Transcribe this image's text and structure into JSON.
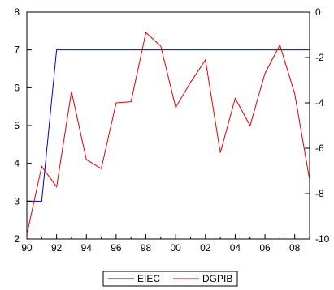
{
  "chart_data": {
    "type": "line",
    "title": "",
    "xlabel": "",
    "ylabel": "",
    "x": [
      1990,
      1991,
      1992,
      1993,
      1994,
      1995,
      1996,
      1997,
      1998,
      1999,
      2000,
      2001,
      2002,
      2003,
      2004,
      2005,
      2006,
      2007,
      2008,
      2009
    ],
    "x_tick_values": [
      1990,
      1992,
      1994,
      1996,
      1998,
      2000,
      2002,
      2004,
      2006,
      2008
    ],
    "x_tick_labels": [
      "90",
      "92",
      "94",
      "96",
      "98",
      "00",
      "02",
      "04",
      "06",
      "08"
    ],
    "xlim": [
      1990,
      2009
    ],
    "ylim_left": [
      2,
      8
    ],
    "y_ticks_left": [
      2,
      3,
      4,
      5,
      6,
      7,
      8
    ],
    "ylim_right": [
      -10,
      0
    ],
    "y_ticks_right": [
      -10,
      -8,
      -6,
      -4,
      -2,
      0
    ],
    "grid": false,
    "legend_position": "bottom-center",
    "series": [
      {
        "name": "EIEC",
        "color": "#0000cc",
        "axis": "left",
        "values": [
          3,
          3,
          7,
          7,
          7,
          7,
          7,
          7,
          7,
          7,
          7,
          7,
          7,
          7,
          7,
          7,
          7,
          7,
          7,
          7
        ]
      },
      {
        "name": "DGPIB",
        "color": "#e00000",
        "axis": "right",
        "values": [
          -9.8,
          -6.8,
          -7.7,
          -3.5,
          -6.5,
          -6.9,
          -4.0,
          -3.95,
          -0.9,
          -1.5,
          -4.2,
          -3.1,
          -2.1,
          -6.2,
          -3.8,
          -5.0,
          -2.7,
          -1.45,
          -3.6,
          -7.4
        ]
      }
    ]
  }
}
